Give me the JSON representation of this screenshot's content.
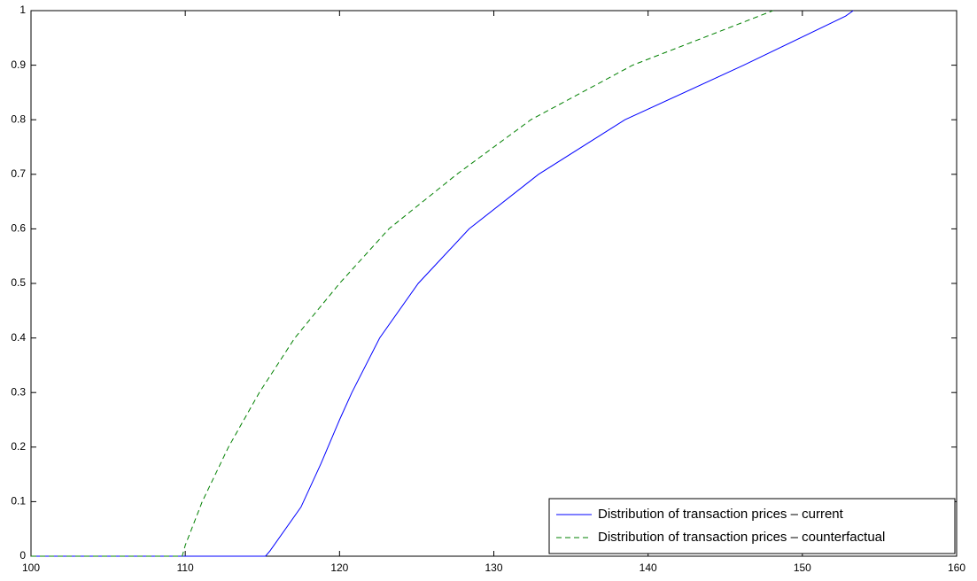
{
  "chart_data": {
    "type": "line",
    "series": [
      {
        "name": "Distribution of transaction prices – current",
        "color": "#0000ff",
        "dash": "solid",
        "x": [
          100,
          115.2,
          115.5,
          117.5,
          118.8,
          120,
          120.8,
          122.6,
          125.1,
          128.4,
          132.9,
          138.5,
          146.2,
          152.8,
          153.3
        ],
        "values": [
          0,
          0,
          0.01,
          0.09,
          0.17,
          0.25,
          0.3,
          0.4,
          0.5,
          0.6,
          0.7,
          0.8,
          0.9,
          0.99,
          1
        ]
      },
      {
        "name": "Distribution of transaction prices – counterfactual",
        "color": "#008000",
        "dash": "dashed",
        "x": [
          100,
          109.8,
          110,
          111.1,
          112.8,
          114.8,
          117.1,
          120,
          123.2,
          127.6,
          132.4,
          139,
          148.1
        ],
        "values": [
          0,
          0,
          0.02,
          0.1,
          0.2,
          0.3,
          0.4,
          0.5,
          0.6,
          0.7,
          0.8,
          0.9,
          1
        ]
      }
    ],
    "xlim": [
      100,
      160
    ],
    "xticks": [
      100,
      110,
      120,
      130,
      140,
      150,
      160
    ],
    "ylim": [
      0,
      1
    ],
    "yticks": [
      0,
      0.1,
      0.2,
      0.3,
      0.4,
      0.5,
      0.6,
      0.7,
      0.8,
      0.9,
      1
    ],
    "grid": false,
    "legend": "lower-right"
  }
}
